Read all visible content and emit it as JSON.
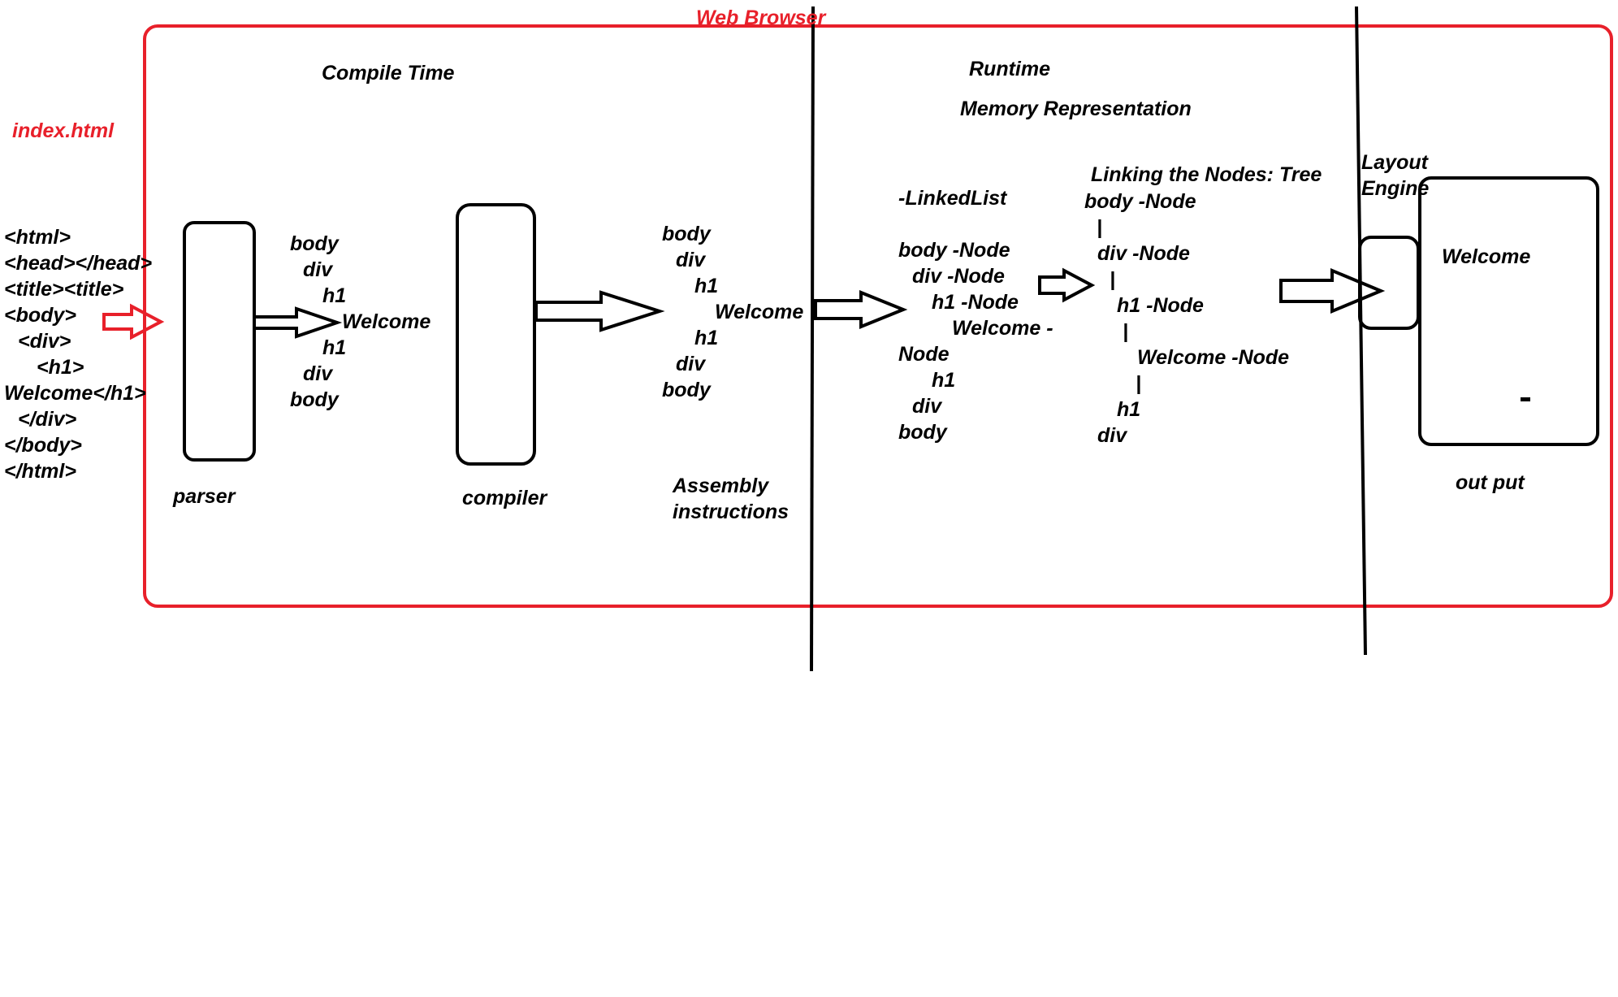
{
  "browser_label": "Web Browser",
  "file_label": "index.html",
  "compile_time": "Compile Time",
  "runtime": "Runtime",
  "memory_representation": "Memory Representation",
  "source_code": [
    "<html>",
    "<head></head>",
    "<title><title>",
    "<body>",
    "<div>",
    "<h1>",
    "Welcome</h1>",
    "</div>",
    "</body>",
    "</html>"
  ],
  "parser_label": "parser",
  "parser_output": [
    "body",
    "div",
    "h1",
    "Welcome",
    "h1",
    "div",
    "body"
  ],
  "compiler_label": "compiler",
  "compiler_output": [
    "body",
    "div",
    "h1",
    "Welcome",
    "h1",
    "div",
    "body"
  ],
  "assembly_label": [
    "Assembly",
    "instructions"
  ],
  "linkedlist_label": "-LinkedList",
  "linkedlist_items": [
    "body -Node",
    "div -Node",
    "h1 -Node",
    "Welcome -",
    "Node",
    "h1",
    "div",
    "body"
  ],
  "tree_label": "Linking the Nodes: Tree",
  "tree_items": [
    "body  -Node",
    "|",
    "div -Node",
    "|",
    "h1 -Node",
    "|",
    "Welcome -Node",
    "|",
    "h1",
    "div"
  ],
  "layout_engine_label": [
    "Layout",
    "Engine"
  ],
  "output_text": "Welcome",
  "output_dash": "-",
  "output_label": "out put",
  "colors": {
    "red": "#e8202a",
    "black": "#000000"
  }
}
